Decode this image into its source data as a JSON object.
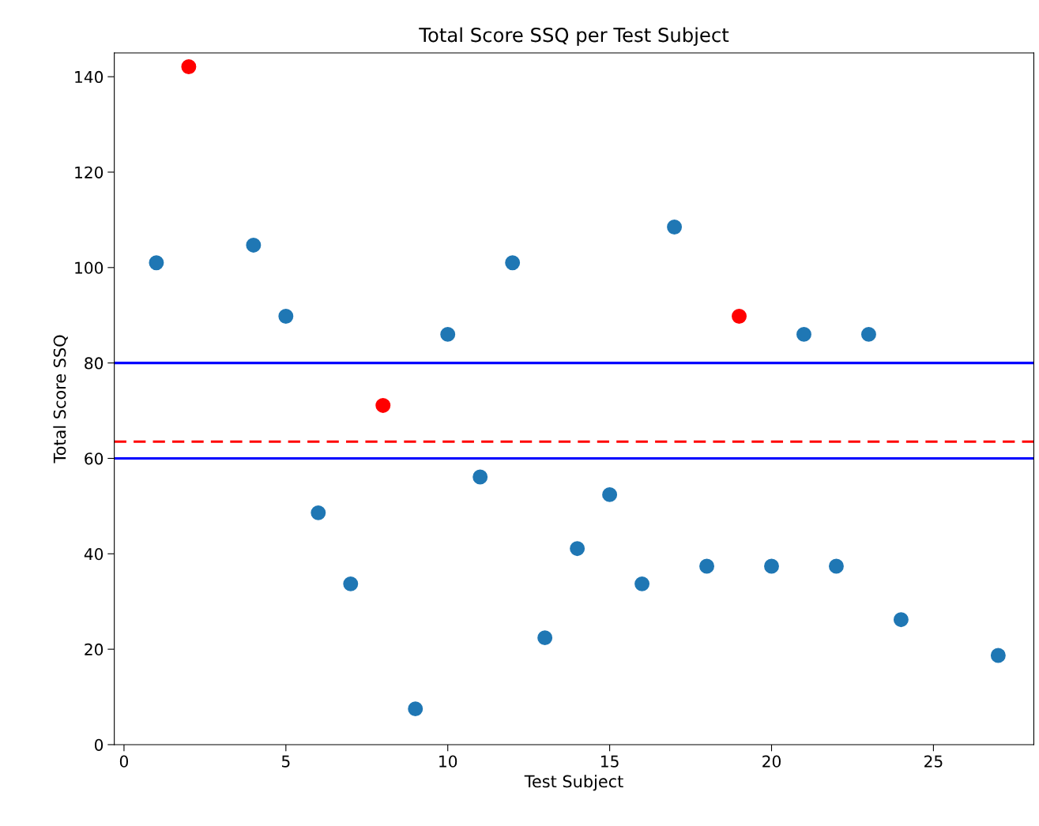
{
  "chart_data": {
    "type": "scatter",
    "title": "Total Score SSQ per Test Subject",
    "xlabel": "Test Subject",
    "ylabel": "Total Score SSQ",
    "series": [
      {
        "color": "#1f77b4",
        "x": [
          1,
          4,
          5,
          6,
          7,
          9,
          10,
          11,
          12,
          13,
          14,
          15,
          16,
          17,
          18,
          20,
          21,
          22,
          23,
          24,
          27
        ],
        "values": [
          101.0,
          104.7,
          89.8,
          48.6,
          33.7,
          7.5,
          86.0,
          56.1,
          101.0,
          22.4,
          41.1,
          52.4,
          33.7,
          108.5,
          37.4,
          37.4,
          86.0,
          37.4,
          86.0,
          26.2,
          18.7
        ]
      },
      {
        "color": "#ff0000",
        "x": [
          2,
          8,
          19
        ],
        "values": [
          142.1,
          71.1,
          89.8
        ]
      }
    ],
    "ref_lines": [
      {
        "axis": "y",
        "value": 80,
        "color": "#0000ff",
        "line_style": "solid"
      },
      {
        "axis": "y",
        "value": 60,
        "color": "#0000ff",
        "line_style": "solid"
      },
      {
        "axis": "y",
        "value": 63.5,
        "color": "#ff0000",
        "line_style": "dashed"
      }
    ],
    "xlim": [
      -0.3,
      28.1
    ],
    "ylim": [
      0,
      145
    ],
    "xticks": [
      0,
      5,
      10,
      15,
      20,
      25
    ],
    "yticks": [
      0,
      20,
      40,
      60,
      80,
      100,
      120,
      140
    ],
    "marker": "circle",
    "grid": false
  }
}
